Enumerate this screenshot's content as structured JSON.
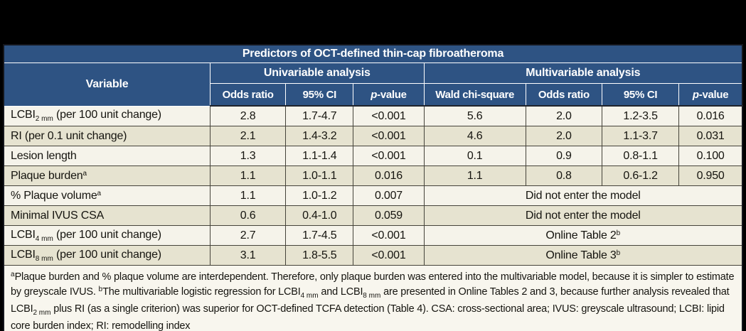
{
  "colors": {
    "header_blue": "#2e5383",
    "row_light": "#f5f3ea",
    "row_dark": "#e6e3d0",
    "footnote_bg": "#f8f6ee",
    "grid_line": "#45433a",
    "header_text": "#ffffff",
    "body_text": "#15140f",
    "page_background": "#000000"
  },
  "table": {
    "title": "Predictors of OCT-defined thin-cap fibroatheroma",
    "header": {
      "variable_label": "Variable",
      "uni_group": "Univariable analysis",
      "multi_group": "Multivariable analysis",
      "columns": [
        [
          {
            "t": "text",
            "v": "Odds ratio"
          }
        ],
        [
          {
            "t": "text",
            "v": "95% CI"
          }
        ],
        [
          {
            "t": "i",
            "v": "p"
          },
          {
            "t": "text",
            "v": "-value"
          }
        ],
        [
          {
            "t": "text",
            "v": "Wald chi-square"
          }
        ],
        [
          {
            "t": "text",
            "v": "Odds ratio"
          }
        ],
        [
          {
            "t": "text",
            "v": "95% CI"
          }
        ],
        [
          {
            "t": "i",
            "v": "p"
          },
          {
            "t": "text",
            "v": "-value"
          }
        ]
      ]
    },
    "rows": [
      {
        "variable": [
          {
            "t": "text",
            "v": "LCBI"
          },
          {
            "t": "sub",
            "v": "2 mm"
          },
          {
            "t": "text",
            "v": " (per 100 unit change)"
          }
        ],
        "uni": [
          "2.8",
          "1.7-4.7",
          "<0.001"
        ],
        "multi": {
          "span": false,
          "values": [
            "5.6",
            "2.0",
            "1.2-3.5",
            "0.016"
          ]
        }
      },
      {
        "variable": [
          {
            "t": "text",
            "v": "RI (per 0.1 unit change)"
          }
        ],
        "uni": [
          "2.1",
          "1.4-3.2",
          "<0.001"
        ],
        "multi": {
          "span": false,
          "values": [
            "4.6",
            "2.0",
            "1.1-3.7",
            "0.031"
          ]
        }
      },
      {
        "variable": [
          {
            "t": "text",
            "v": "Lesion length"
          }
        ],
        "uni": [
          "1.3",
          "1.1-1.4",
          "<0.001"
        ],
        "multi": {
          "span": false,
          "values": [
            "0.1",
            "0.9",
            "0.8-1.1",
            "0.100"
          ]
        }
      },
      {
        "variable": [
          {
            "t": "text",
            "v": "Plaque burden"
          },
          {
            "t": "sup",
            "v": "a"
          }
        ],
        "uni": [
          "1.1",
          "1.0-1.1",
          "0.016"
        ],
        "multi": {
          "span": false,
          "values": [
            "1.1",
            "0.8",
            "0.6-1.2",
            "0.950"
          ]
        }
      },
      {
        "variable": [
          {
            "t": "text",
            "v": "% Plaque volume"
          },
          {
            "t": "sup",
            "v": "a"
          }
        ],
        "uni": [
          "1.1",
          "1.0-1.2",
          "0.007"
        ],
        "multi": {
          "span": true,
          "segments": [
            {
              "t": "text",
              "v": "Did not enter the model"
            }
          ]
        }
      },
      {
        "variable": [
          {
            "t": "text",
            "v": "Minimal IVUS CSA"
          }
        ],
        "uni": [
          "0.6",
          "0.4-1.0",
          "0.059"
        ],
        "multi": {
          "span": true,
          "segments": [
            {
              "t": "text",
              "v": "Did not enter the model"
            }
          ]
        }
      },
      {
        "variable": [
          {
            "t": "text",
            "v": "LCBI"
          },
          {
            "t": "sub",
            "v": "4 mm"
          },
          {
            "t": "text",
            "v": " (per 100 unit change)"
          }
        ],
        "uni": [
          "2.7",
          "1.7-4.5",
          "<0.001"
        ],
        "multi": {
          "span": true,
          "segments": [
            {
              "t": "text",
              "v": "Online Table 2"
            },
            {
              "t": "sup",
              "v": "b"
            }
          ]
        }
      },
      {
        "variable": [
          {
            "t": "text",
            "v": "LCBI"
          },
          {
            "t": "sub",
            "v": "8 mm"
          },
          {
            "t": "text",
            "v": " (per 100 unit change)"
          }
        ],
        "uni": [
          "3.1",
          "1.8-5.5",
          "<0.001"
        ],
        "multi": {
          "span": true,
          "segments": [
            {
              "t": "text",
              "v": "Online Table 3"
            },
            {
              "t": "sup",
              "v": "b"
            }
          ]
        }
      }
    ],
    "footnote": {
      "segments": [
        {
          "t": "sup",
          "v": "a"
        },
        {
          "t": "text",
          "v": "Plaque burden and % plaque volume are interdependent. Therefore, only plaque burden was entered into the multivariable model, because it is simpler to estimate by greyscale IVUS. "
        },
        {
          "t": "sup",
          "v": "b"
        },
        {
          "t": "text",
          "v": "The multivariable logistic regression for LCBI"
        },
        {
          "t": "sub",
          "v": "4 mm"
        },
        {
          "t": "text",
          "v": " and LCBI"
        },
        {
          "t": "sub",
          "v": "8 mm"
        },
        {
          "t": "text",
          "v": " are presented in Online Tables 2 and 3, because further analysis revealed that LCBI"
        },
        {
          "t": "sub",
          "v": "2 mm"
        },
        {
          "t": "text",
          "v": " plus RI (as a single criterion) was superior for OCT-defined TCFA detection (Table 4). CSA: cross-sectional area; IVUS: greyscale ultrasound; LCBI: lipid core burden index; RI: remodelling index"
        }
      ]
    }
  }
}
